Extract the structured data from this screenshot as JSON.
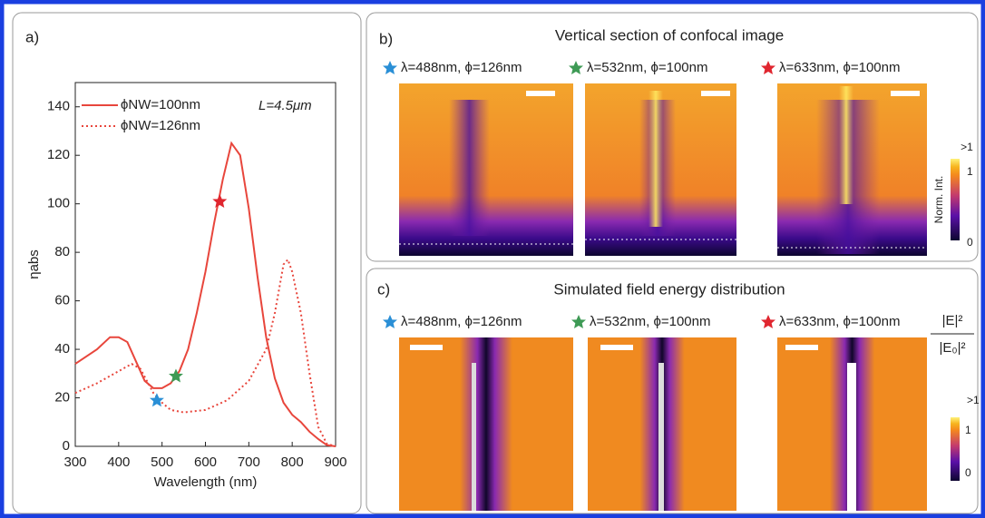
{
  "chart_data": {
    "type": "line",
    "panel_label": "a)",
    "annotation": "L=4.5μm",
    "xlabel": "Wavelength (nm)",
    "ylabel": "ηabs",
    "xlim": [
      300,
      900
    ],
    "xticks": [
      300,
      400,
      500,
      600,
      700,
      800,
      900
    ],
    "ylim": [
      0,
      150
    ],
    "yticks": [
      0,
      20,
      40,
      60,
      80,
      100,
      120,
      140
    ],
    "series": [
      {
        "name": "ϕNW=100nm",
        "color": "#e8463c",
        "style": "solid",
        "x": [
          300,
          350,
          380,
          400,
          420,
          440,
          460,
          480,
          500,
          520,
          540,
          560,
          580,
          600,
          620,
          640,
          660,
          680,
          700,
          720,
          740,
          760,
          780,
          800,
          820,
          840,
          860,
          880,
          900
        ],
        "values": [
          34,
          40,
          45,
          45,
          43,
          35,
          27,
          24,
          24,
          26,
          31,
          40,
          55,
          72,
          92,
          110,
          125,
          120,
          98,
          70,
          45,
          28,
          18,
          13,
          10,
          6,
          3,
          0.5,
          0
        ]
      },
      {
        "name": "ϕNW=126nm",
        "color": "#e8463c",
        "style": "dotted",
        "x": [
          300,
          350,
          400,
          430,
          450,
          480,
          500,
          520,
          550,
          600,
          650,
          700,
          740,
          760,
          780,
          790,
          800,
          820,
          840,
          860,
          880,
          900
        ],
        "values": [
          22,
          26,
          31,
          34,
          32,
          22,
          18,
          15,
          14,
          15,
          19,
          27,
          40,
          55,
          75,
          77,
          72,
          55,
          30,
          8,
          1,
          0
        ]
      }
    ],
    "markers": [
      {
        "x": 488,
        "y": 19,
        "color": "#2a8fd6"
      },
      {
        "x": 532,
        "y": 29,
        "color": "#3e9a55"
      },
      {
        "x": 633,
        "y": 101,
        "color": "#e0262f"
      }
    ]
  },
  "panel_b": {
    "label": "b)",
    "title": "Vertical section of confocal image",
    "images": [
      "λ=488nm, ϕ=126nm",
      "λ=532nm, ϕ=100nm",
      "λ=633nm, ϕ=100nm"
    ],
    "colorbar": {
      "title": "Norm. Int.",
      "labels": [
        ">1",
        "1",
        "0"
      ]
    }
  },
  "panel_c": {
    "label": "c)",
    "title": "Simulated field energy distribution",
    "images": [
      "λ=488nm, ϕ=126nm",
      "λ=532nm, ϕ=100nm",
      "λ=633nm, ϕ=100nm"
    ],
    "colorbar": {
      "numerator": "|E|²",
      "denominator": "|E₀|²",
      "labels": [
        ">1",
        "1",
        "0"
      ]
    }
  }
}
